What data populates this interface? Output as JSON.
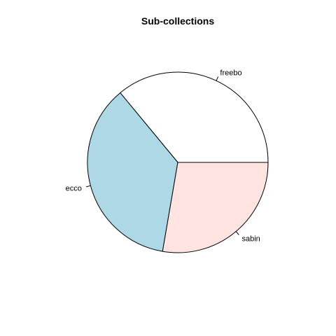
{
  "chart_data": {
    "type": "pie",
    "title": "Sub-collections",
    "slices": [
      {
        "label": "freebo",
        "value": 36.0,
        "color": "#FFFFFF"
      },
      {
        "label": "ecco",
        "value": 36.3,
        "color": "#ADD8E6"
      },
      {
        "label": "sabin",
        "value": 27.7,
        "color": "#FFE4E1"
      }
    ],
    "start_angle_deg": 0,
    "direction": "counterclockwise",
    "legend": "none"
  }
}
